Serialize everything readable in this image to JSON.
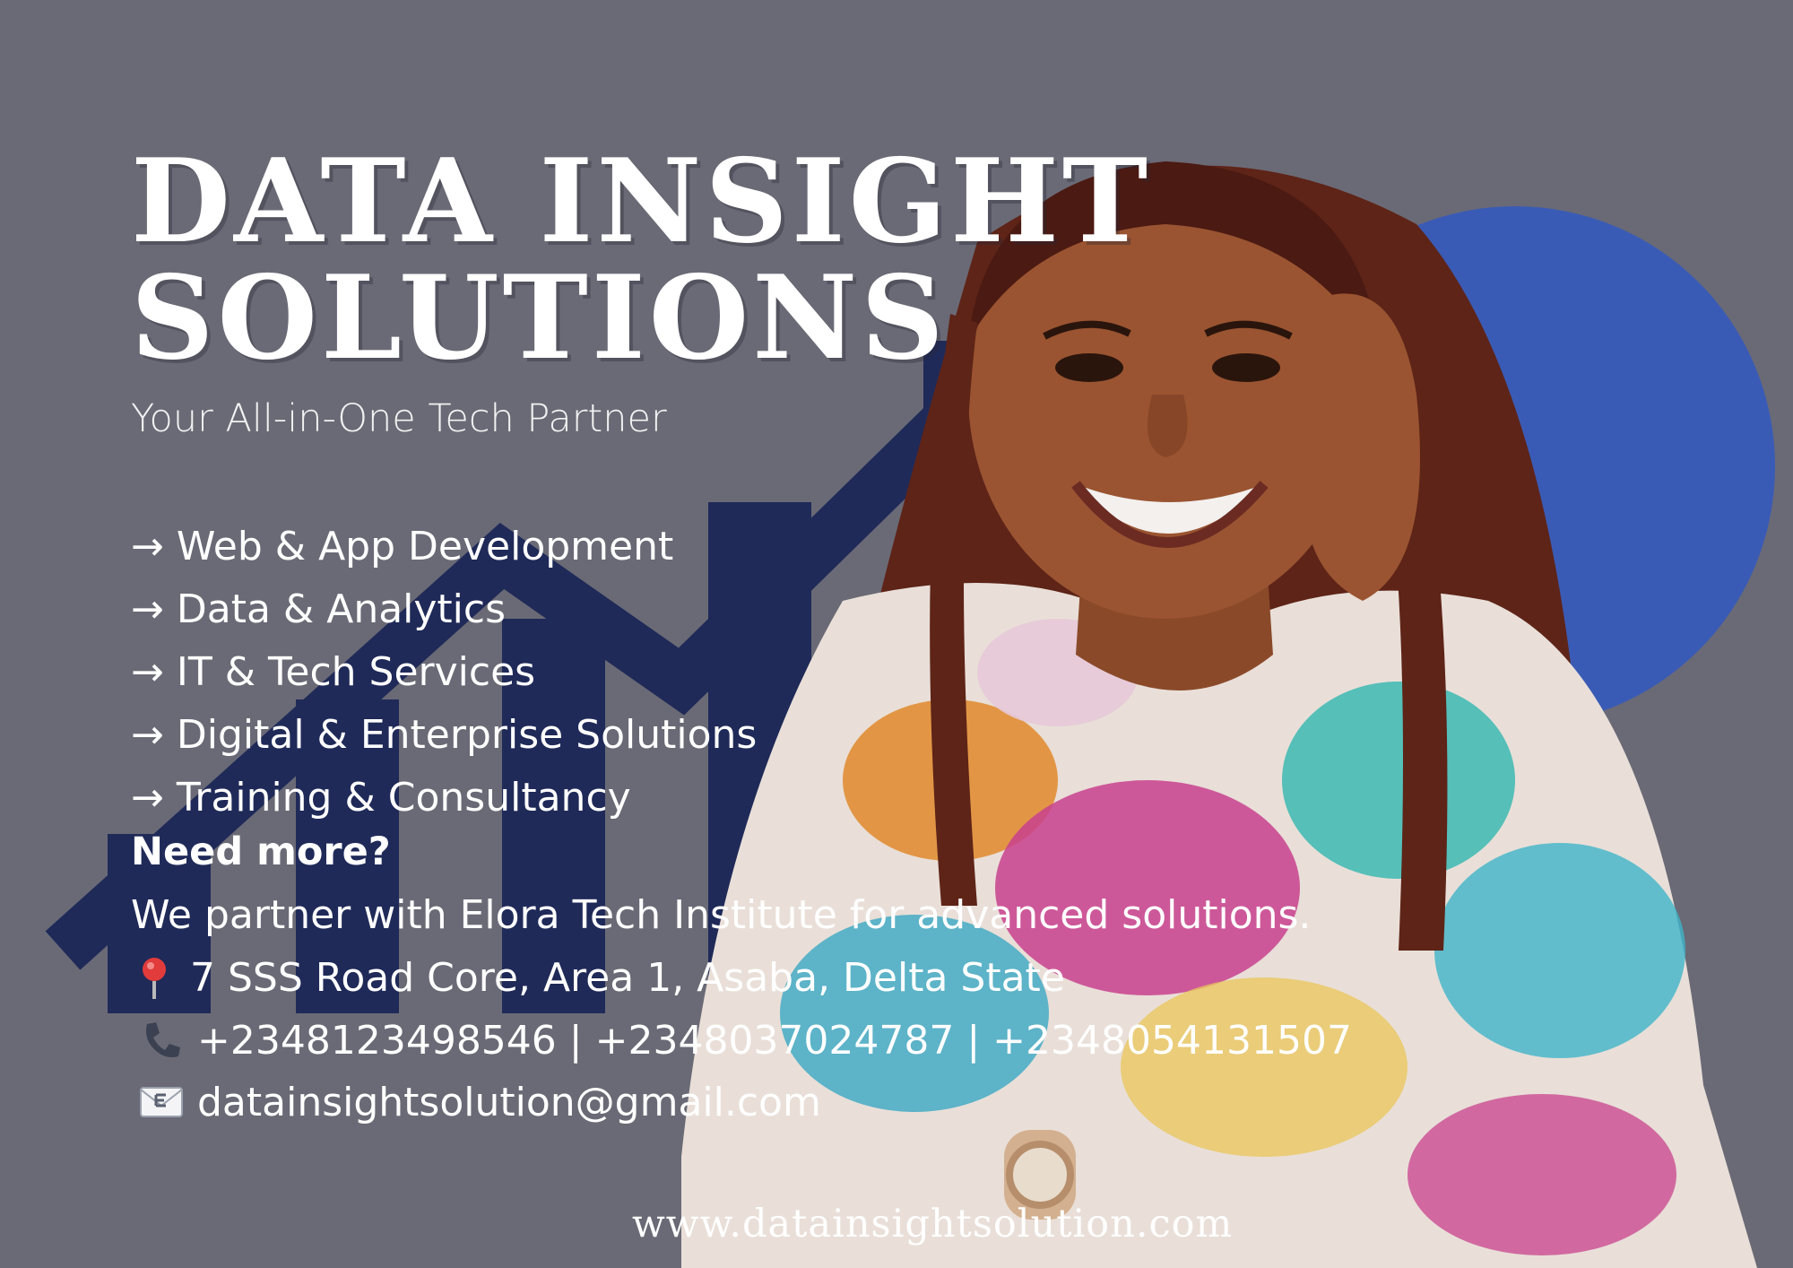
{
  "brand": {
    "title_line1": "DATA INSIGHT",
    "title_line2": "SOLUTIONS",
    "tagline": "Your All-in-One Tech Partner"
  },
  "services": {
    "arrow": "→",
    "items": [
      "Web & App Development",
      "Data & Analytics",
      "IT & Tech Services",
      "Digital & Enterprise Solutions",
      "Training & Consultancy"
    ]
  },
  "partner": {
    "heading": "Need more?",
    "text": "We partner with Elora Tech Institute for advanced solutions."
  },
  "contact": {
    "address": "7 SSS Road Core, Area 1, Asaba, Delta State",
    "phones": "+2348123498546 | +2348037024787 | +2348054131507",
    "email": "datainsightsolution@gmail.com",
    "icons": [
      "pin-icon",
      "phone-icon",
      "envelope-icon"
    ]
  },
  "website": "www.datainsightsolution.com",
  "colors": {
    "background": "#6a6a76",
    "logo_navy": "#1f2a58",
    "logo_blue": "#3a5bb5",
    "text": "#ffffff"
  }
}
